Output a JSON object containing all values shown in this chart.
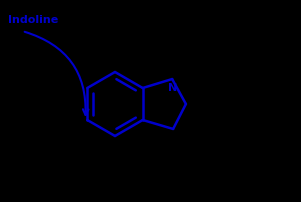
{
  "background_color": "#000000",
  "line_color": "#0000CC",
  "label_text": "Indoline",
  "label_fontsize": 8,
  "label_color": "#0000CC",
  "label_weight": "bold",
  "figsize": [
    3.01,
    2.03
  ],
  "dpi": 100
}
